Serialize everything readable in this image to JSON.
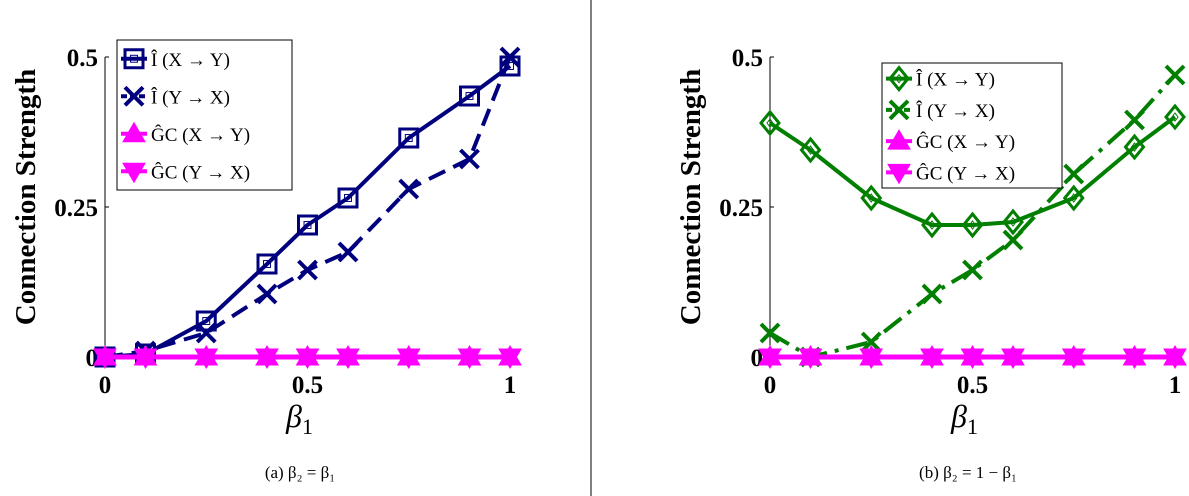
{
  "chart_data": [
    {
      "type": "line",
      "caption": "(a) β₂ = β₁",
      "ylabel": "Connection Strength",
      "xlabel": "β",
      "xlabel_sub": "1",
      "xlim": [
        0,
        1
      ],
      "ylim": [
        0,
        0.5
      ],
      "xticks": [
        0,
        0.5,
        1
      ],
      "xtick_labels": [
        "0",
        "0.5",
        "1"
      ],
      "yticks": [
        0,
        0.25,
        0.5
      ],
      "ytick_labels": [
        "0",
        "0.25",
        "0.5"
      ],
      "grid": false,
      "legend": "top-left",
      "x": [
        0,
        0.1,
        0.25,
        0.4,
        0.5,
        0.6,
        0.75,
        0.9,
        1
      ],
      "series": [
        {
          "name": "Î (X → Y)",
          "values": [
            0.0,
            0.005,
            0.06,
            0.155,
            0.22,
            0.265,
            0.365,
            0.435,
            0.485
          ],
          "color": "#00007f",
          "dash": "solid",
          "marker": "square"
        },
        {
          "name": "Î (Y → X)",
          "values": [
            0.0,
            0.01,
            0.04,
            0.105,
            0.145,
            0.175,
            0.28,
            0.33,
            0.5
          ],
          "color": "#00007f",
          "dash": "dashed",
          "marker": "x"
        },
        {
          "name": "ĜC (X → Y)",
          "values": [
            0,
            0,
            0,
            0,
            0,
            0,
            0,
            0,
            0
          ],
          "color": "#ff00ff",
          "dash": "solid",
          "marker": "triangle-up"
        },
        {
          "name": "ĜC (Y → X)",
          "values": [
            0,
            0,
            0,
            0,
            0,
            0,
            0,
            0,
            0
          ],
          "color": "#ff00ff",
          "dash": "solid",
          "marker": "triangle-down"
        }
      ]
    },
    {
      "type": "line",
      "caption": "(b) β₂ = 1 − β₁",
      "ylabel": "Connection Strength",
      "xlabel": "β",
      "xlabel_sub": "1",
      "xlim": [
        0,
        1
      ],
      "ylim": [
        0,
        0.5
      ],
      "xticks": [
        0,
        0.5,
        1
      ],
      "xtick_labels": [
        "0",
        "0.5",
        "1"
      ],
      "yticks": [
        0,
        0.25,
        0.5
      ],
      "ytick_labels": [
        "0",
        "0.25",
        "0.5"
      ],
      "grid": false,
      "legend": "top-right",
      "x": [
        0,
        0.1,
        0.25,
        0.4,
        0.5,
        0.6,
        0.75,
        0.9,
        1
      ],
      "series": [
        {
          "name": "Î (X → Y)",
          "values": [
            0.39,
            0.345,
            0.265,
            0.22,
            0.22,
            0.225,
            0.265,
            0.35,
            0.4
          ],
          "color": "#007f00",
          "dash": "solid",
          "marker": "diamond"
        },
        {
          "name": "Î (Y → X)",
          "values": [
            0.04,
            0.0,
            0.025,
            0.105,
            0.145,
            0.195,
            0.305,
            0.395,
            0.47
          ],
          "color": "#007f00",
          "dash": "dashdot",
          "marker": "x"
        },
        {
          "name": "ĜC (X → Y)",
          "values": [
            0,
            0,
            0,
            0,
            0,
            0,
            0,
            0,
            0
          ],
          "color": "#ff00ff",
          "dash": "solid",
          "marker": "triangle-up"
        },
        {
          "name": "ĜC (Y → X)",
          "values": [
            0,
            0,
            0,
            0,
            0,
            0,
            0,
            0,
            0
          ],
          "color": "#ff00ff",
          "dash": "solid",
          "marker": "triangle-down"
        }
      ]
    }
  ]
}
